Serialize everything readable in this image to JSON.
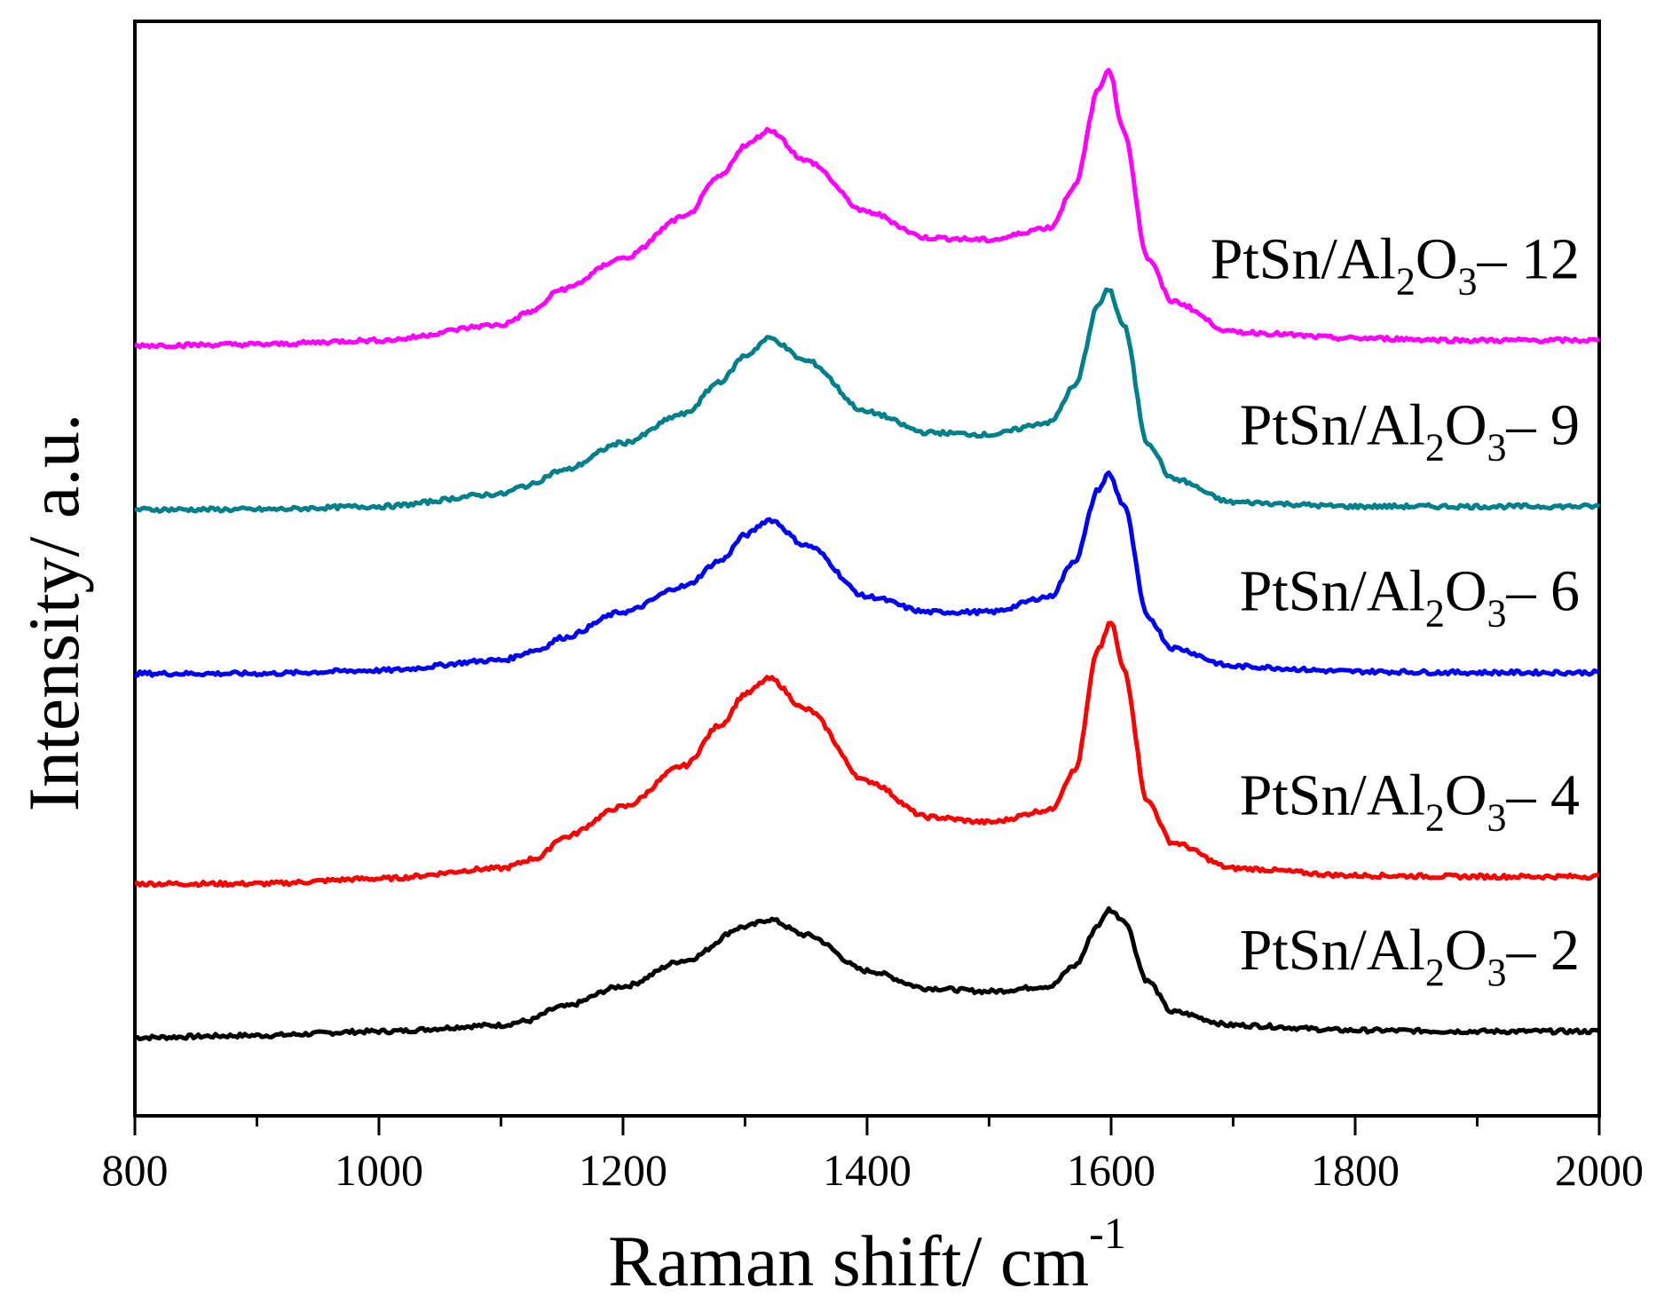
{
  "chart_data": {
    "type": "line",
    "title": "",
    "xlabel": "Raman shift/ cm",
    "xlabel_superscript": "-1",
    "ylabel": "Intensity/ a.u.",
    "xlim": [
      800,
      2000
    ],
    "ylim": [
      0,
      1
    ],
    "x_ticks": [
      "800",
      "1000",
      "1200",
      "1400",
      "1600",
      "1800",
      "2000"
    ],
    "x_tick_values": [
      800,
      1000,
      1200,
      1400,
      1600,
      1800,
      2000
    ],
    "minor_tick_step": 100,
    "grid": false,
    "legend": "inline labels at right of each trace",
    "peaks": {
      "D_band": 1320,
      "G_band": 1598
    },
    "series": [
      {
        "name": "PtSn/Al2O3-2",
        "label_parts": {
          "a": "PtSn/Al",
          "sub1": "2",
          "b": "O",
          "sub2": "3",
          "c": "– 2"
        },
        "color": "#000000",
        "x": [
          800,
          900,
          1000,
          1100,
          1120,
          1150,
          1200,
          1250,
          1300,
          1320,
          1350,
          1400,
          1450,
          1500,
          1550,
          1570,
          1590,
          1598,
          1610,
          1630,
          1650,
          1700,
          1800,
          1900,
          2000
        ],
        "y": [
          0.04,
          0.042,
          0.046,
          0.052,
          0.056,
          0.07,
          0.09,
          0.115,
          0.148,
          0.155,
          0.14,
          0.105,
          0.088,
          0.085,
          0.09,
          0.11,
          0.15,
          0.165,
          0.155,
          0.095,
          0.065,
          0.052,
          0.047,
          0.046,
          0.046
        ]
      },
      {
        "name": "PtSn/Al2O3-4",
        "label_parts": {
          "a": "PtSn/Al",
          "sub1": "2",
          "b": "O",
          "sub2": "3",
          "c": "– 4"
        },
        "color": "#ff0000",
        "x": [
          800,
          900,
          1000,
          1100,
          1130,
          1150,
          1200,
          1250,
          1280,
          1300,
          1320,
          1350,
          1400,
          1450,
          1500,
          1550,
          1570,
          1590,
          1600,
          1610,
          1630,
          1650,
          1700,
          1800,
          1900,
          2000
        ],
        "y": [
          0.19,
          0.19,
          0.195,
          0.205,
          0.215,
          0.235,
          0.265,
          0.305,
          0.345,
          0.375,
          0.39,
          0.36,
          0.29,
          0.255,
          0.25,
          0.262,
          0.3,
          0.42,
          0.445,
          0.4,
          0.27,
          0.23,
          0.205,
          0.198,
          0.197,
          0.197
        ]
      },
      {
        "name": "PtSn/Al2O3-6",
        "label_parts": {
          "a": "PtSn/Al",
          "sub1": "2",
          "b": "O",
          "sub2": "3",
          "c": "– 6"
        },
        "color": "#0000ff",
        "x": [
          800,
          900,
          1000,
          1100,
          1130,
          1150,
          1200,
          1250,
          1280,
          1300,
          1320,
          1350,
          1400,
          1450,
          1500,
          1550,
          1570,
          1590,
          1598,
          1610,
          1630,
          1650,
          1700,
          1800,
          1900,
          2000
        ],
        "y": [
          0.395,
          0.395,
          0.398,
          0.408,
          0.418,
          0.43,
          0.455,
          0.48,
          0.505,
          0.53,
          0.545,
          0.52,
          0.47,
          0.455,
          0.455,
          0.47,
          0.505,
          0.575,
          0.59,
          0.56,
          0.45,
          0.42,
          0.402,
          0.397,
          0.396,
          0.396
        ]
      },
      {
        "name": "PtSn/Al2O3-9",
        "label_parts": {
          "a": "PtSn/Al",
          "sub1": "2",
          "b": "O",
          "sub2": "3",
          "c": "– 9"
        },
        "color": "#00808a",
        "x": [
          800,
          900,
          1000,
          1100,
          1120,
          1150,
          1200,
          1250,
          1280,
          1300,
          1320,
          1350,
          1400,
          1450,
          1500,
          1550,
          1570,
          1590,
          1598,
          1610,
          1630,
          1650,
          1700,
          1800,
          1900,
          2000
        ],
        "y": [
          0.555,
          0.555,
          0.558,
          0.57,
          0.578,
          0.593,
          0.62,
          0.648,
          0.68,
          0.705,
          0.722,
          0.7,
          0.65,
          0.63,
          0.628,
          0.64,
          0.675,
          0.755,
          0.77,
          0.735,
          0.62,
          0.585,
          0.562,
          0.558,
          0.558,
          0.558
        ]
      },
      {
        "name": "PtSn/Al2O3-12",
        "label_parts": {
          "a": "PtSn/Al",
          "sub1": "2",
          "b": "O",
          "sub2": "3",
          "c": "– 12"
        },
        "color": "#ff00ff",
        "x": [
          800,
          900,
          1000,
          1100,
          1125,
          1150,
          1200,
          1250,
          1280,
          1300,
          1320,
          1350,
          1400,
          1450,
          1500,
          1550,
          1570,
          1590,
          1598,
          1610,
          1630,
          1650,
          1700,
          1800,
          1900,
          2000
        ],
        "y": [
          0.715,
          0.716,
          0.72,
          0.735,
          0.748,
          0.77,
          0.8,
          0.84,
          0.88,
          0.91,
          0.925,
          0.895,
          0.845,
          0.82,
          0.818,
          0.83,
          0.87,
          0.965,
          0.985,
          0.925,
          0.8,
          0.758,
          0.728,
          0.722,
          0.72,
          0.72
        ]
      }
    ]
  }
}
